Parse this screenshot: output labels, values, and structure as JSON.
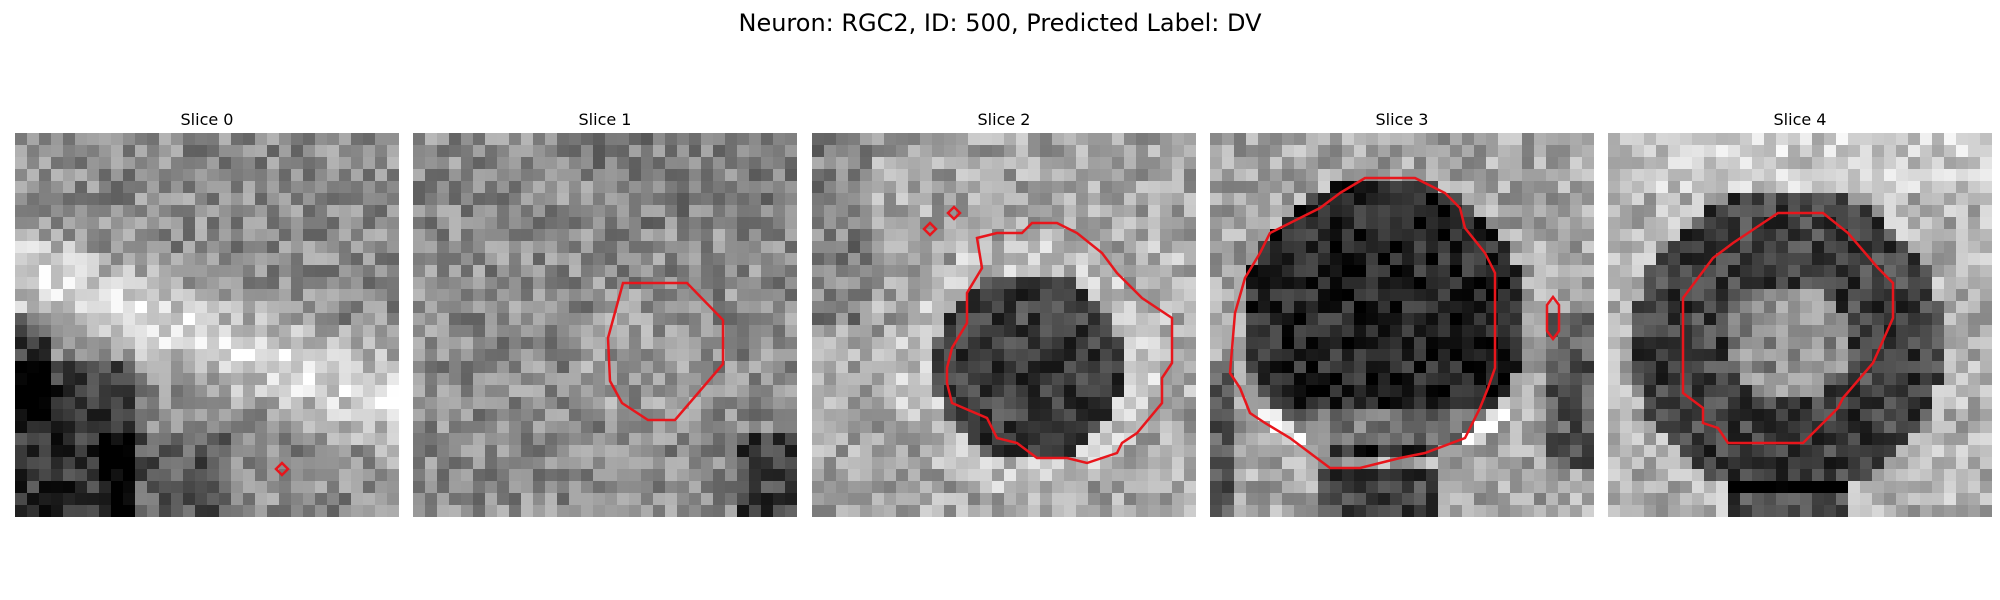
{
  "title": "Neuron: RGC2, ID: 500, Predicted Label: DV",
  "panels": [
    {
      "label": "Slice 0"
    },
    {
      "label": "Slice 1"
    },
    {
      "label": "Slice 2"
    },
    {
      "label": "Slice 3"
    },
    {
      "label": "Slice 4"
    }
  ],
  "contour_color": "#e8161c"
}
